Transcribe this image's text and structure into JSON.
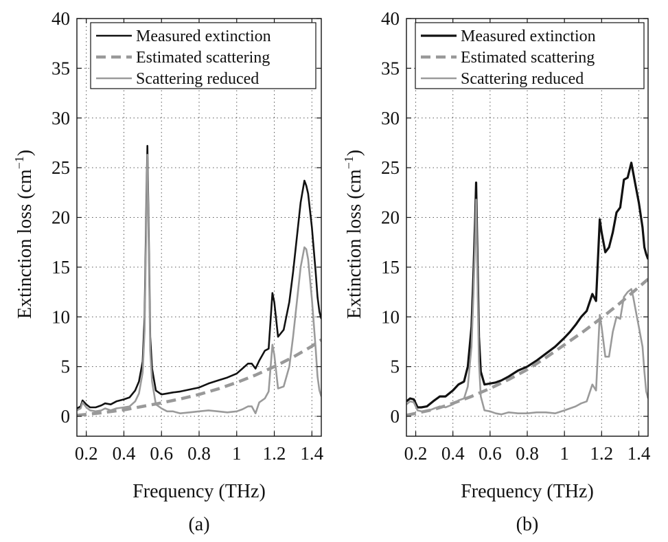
{
  "chart_data": [
    {
      "type": "line",
      "panel_label": "(a)",
      "xlabel": "Frequency (THz)",
      "ylabel": "Extinction loss (cm",
      "ylabel_unit_sup": "−1",
      "ylabel_close": ")",
      "xlim": [
        0.15,
        1.45
      ],
      "ylim": [
        -2,
        40
      ],
      "xticks": [
        0.2,
        0.4,
        0.6,
        0.8,
        1.0,
        1.2,
        1.4
      ],
      "xtick_labels": [
        "0.2",
        "0.4",
        "0.6",
        "0.8",
        "1",
        "1.2",
        "1.4"
      ],
      "yticks": [
        0,
        5,
        10,
        15,
        20,
        25,
        30,
        35,
        40
      ],
      "ytick_labels": [
        "0",
        "5",
        "10",
        "15",
        "20",
        "25",
        "30",
        "35",
        "40"
      ],
      "grid": true,
      "legend_position": "top",
      "series": [
        {
          "name": "Measured extinction",
          "style": "solid",
          "color": "#111111",
          "x": [
            0.15,
            0.17,
            0.18,
            0.2,
            0.22,
            0.25,
            0.28,
            0.3,
            0.33,
            0.36,
            0.4,
            0.43,
            0.46,
            0.48,
            0.5,
            0.51,
            0.52,
            0.525,
            0.53,
            0.54,
            0.55,
            0.57,
            0.6,
            0.63,
            0.66,
            0.7,
            0.75,
            0.8,
            0.85,
            0.9,
            0.95,
            1.0,
            1.03,
            1.06,
            1.08,
            1.1,
            1.12,
            1.15,
            1.17,
            1.19,
            1.2,
            1.22,
            1.25,
            1.28,
            1.3,
            1.32,
            1.34,
            1.36,
            1.37,
            1.38,
            1.4,
            1.42,
            1.43,
            1.44,
            1.45
          ],
          "y": [
            0.8,
            1.0,
            1.6,
            1.2,
            0.9,
            0.9,
            1.1,
            1.3,
            1.2,
            1.5,
            1.7,
            1.9,
            2.6,
            3.5,
            5.5,
            10.0,
            22.0,
            27.2,
            21.0,
            8.0,
            4.8,
            2.6,
            2.2,
            2.3,
            2.4,
            2.5,
            2.7,
            2.9,
            3.3,
            3.6,
            3.9,
            4.3,
            4.8,
            5.3,
            5.3,
            4.8,
            5.6,
            6.6,
            6.8,
            12.4,
            11.5,
            8.0,
            8.7,
            11.5,
            14.5,
            18.0,
            21.5,
            23.7,
            23.2,
            22.4,
            19.0,
            14.5,
            12.0,
            10.5,
            9.8
          ]
        },
        {
          "name": "Estimated scattering",
          "style": "dashed",
          "color": "#999999",
          "x": [
            0.15,
            0.2,
            0.3,
            0.4,
            0.5,
            0.6,
            0.7,
            0.8,
            0.9,
            1.0,
            1.1,
            1.2,
            1.3,
            1.4,
            1.45
          ],
          "y": [
            0.1,
            0.2,
            0.4,
            0.65,
            1.0,
            1.35,
            1.75,
            2.2,
            2.75,
            3.4,
            4.15,
            5.0,
            5.95,
            7.05,
            7.7
          ]
        },
        {
          "name": "Scattering reduced",
          "style": "solid",
          "color": "#9a9a9a",
          "x": [
            0.15,
            0.17,
            0.18,
            0.2,
            0.22,
            0.25,
            0.28,
            0.3,
            0.33,
            0.36,
            0.4,
            0.43,
            0.46,
            0.48,
            0.5,
            0.51,
            0.52,
            0.525,
            0.53,
            0.54,
            0.55,
            0.57,
            0.6,
            0.63,
            0.66,
            0.7,
            0.75,
            0.8,
            0.85,
            0.9,
            0.95,
            1.0,
            1.03,
            1.06,
            1.08,
            1.1,
            1.12,
            1.15,
            1.17,
            1.19,
            1.2,
            1.22,
            1.25,
            1.28,
            1.3,
            1.32,
            1.34,
            1.36,
            1.37,
            1.38,
            1.4,
            1.42,
            1.43,
            1.44,
            1.45
          ],
          "y": [
            0.6,
            0.8,
            1.4,
            0.9,
            0.6,
            0.5,
            0.6,
            0.8,
            0.6,
            0.8,
            0.9,
            1.0,
            1.5,
            2.3,
            4.4,
            8.6,
            20.5,
            26.3,
            19.6,
            6.6,
            3.5,
            1.2,
            0.8,
            0.5,
            0.5,
            0.3,
            0.4,
            0.5,
            0.6,
            0.5,
            0.4,
            0.5,
            0.7,
            1.0,
            1.0,
            0.3,
            1.4,
            1.8,
            2.5,
            7.2,
            6.2,
            2.8,
            3.0,
            5.0,
            8.0,
            11.5,
            15.0,
            17.0,
            16.8,
            15.8,
            11.8,
            6.8,
            4.0,
            2.6,
            2.0
          ]
        }
      ]
    },
    {
      "type": "line",
      "panel_label": "(b)",
      "xlabel": "Frequency (THz)",
      "ylabel": "Extinction loss (cm",
      "ylabel_unit_sup": "−1",
      "ylabel_close": ")",
      "xlim": [
        0.15,
        1.45
      ],
      "ylim": [
        -2,
        40
      ],
      "xticks": [
        0.2,
        0.4,
        0.6,
        0.8,
        1.0,
        1.2,
        1.4
      ],
      "xtick_labels": [
        "0.2",
        "0.4",
        "0.6",
        "0.8",
        "1",
        "1.2",
        "1.4"
      ],
      "yticks": [
        0,
        5,
        10,
        15,
        20,
        25,
        30,
        35,
        40
      ],
      "ytick_labels": [
        "0",
        "5",
        "10",
        "15",
        "20",
        "25",
        "30",
        "35",
        "40"
      ],
      "grid": true,
      "legend_position": "top",
      "series": [
        {
          "name": "Measured extinction",
          "style": "solid",
          "color": "#111111",
          "x": [
            0.15,
            0.17,
            0.19,
            0.21,
            0.23,
            0.26,
            0.3,
            0.33,
            0.36,
            0.4,
            0.43,
            0.46,
            0.48,
            0.5,
            0.51,
            0.52,
            0.525,
            0.53,
            0.54,
            0.55,
            0.57,
            0.6,
            0.63,
            0.66,
            0.7,
            0.75,
            0.8,
            0.85,
            0.9,
            0.95,
            1.0,
            1.03,
            1.06,
            1.09,
            1.12,
            1.15,
            1.17,
            1.19,
            1.2,
            1.22,
            1.24,
            1.26,
            1.28,
            1.3,
            1.32,
            1.34,
            1.36,
            1.37,
            1.38,
            1.4,
            1.42,
            1.43,
            1.44,
            1.45
          ],
          "y": [
            1.5,
            1.8,
            1.7,
            0.9,
            0.9,
            1.0,
            1.6,
            2.0,
            2.0,
            2.6,
            3.2,
            3.5,
            5.0,
            9.0,
            14.0,
            20.0,
            23.5,
            18.0,
            8.0,
            4.5,
            3.2,
            3.3,
            3.4,
            3.6,
            4.0,
            4.6,
            5.0,
            5.6,
            6.3,
            7.0,
            7.9,
            8.5,
            9.2,
            10.0,
            10.6,
            12.3,
            11.6,
            19.8,
            18.5,
            16.5,
            17.0,
            18.5,
            20.5,
            21.0,
            23.8,
            24.0,
            25.5,
            24.5,
            23.5,
            21.5,
            19.0,
            17.0,
            16.3,
            15.8
          ]
        },
        {
          "name": "Estimated scattering",
          "style": "dashed",
          "color": "#999999",
          "x": [
            0.15,
            0.2,
            0.3,
            0.4,
            0.5,
            0.6,
            0.7,
            0.8,
            0.9,
            1.0,
            1.1,
            1.2,
            1.3,
            1.4,
            1.45
          ],
          "y": [
            0.1,
            0.3,
            0.7,
            1.3,
            2.0,
            2.8,
            3.7,
            4.7,
            5.9,
            7.2,
            8.5,
            9.9,
            11.4,
            13.0,
            13.8
          ]
        },
        {
          "name": "Scattering reduced",
          "style": "solid",
          "color": "#9a9a9a",
          "x": [
            0.15,
            0.17,
            0.19,
            0.21,
            0.23,
            0.26,
            0.3,
            0.33,
            0.36,
            0.4,
            0.43,
            0.46,
            0.48,
            0.5,
            0.51,
            0.52,
            0.525,
            0.53,
            0.54,
            0.55,
            0.57,
            0.6,
            0.63,
            0.66,
            0.7,
            0.75,
            0.8,
            0.85,
            0.9,
            0.95,
            1.0,
            1.03,
            1.06,
            1.09,
            1.12,
            1.15,
            1.17,
            1.19,
            1.2,
            1.22,
            1.24,
            1.26,
            1.28,
            1.3,
            1.32,
            1.34,
            1.36,
            1.37,
            1.38,
            1.4,
            1.42,
            1.43,
            1.44,
            1.45
          ],
          "y": [
            1.2,
            1.5,
            1.4,
            0.6,
            0.5,
            0.5,
            0.8,
            1.0,
            0.9,
            1.2,
            1.6,
            1.8,
            3.0,
            7.0,
            12.0,
            18.0,
            21.8,
            16.0,
            5.5,
            2.0,
            0.6,
            0.5,
            0.3,
            0.2,
            0.4,
            0.3,
            0.3,
            0.4,
            0.4,
            0.3,
            0.6,
            0.8,
            1.0,
            1.3,
            1.5,
            3.2,
            2.6,
            10.2,
            9.0,
            6.0,
            6.0,
            8.5,
            10.0,
            9.8,
            12.0,
            12.5,
            12.8,
            12.0,
            11.0,
            9.0,
            7.0,
            4.5,
            2.5,
            1.8
          ]
        }
      ]
    }
  ]
}
